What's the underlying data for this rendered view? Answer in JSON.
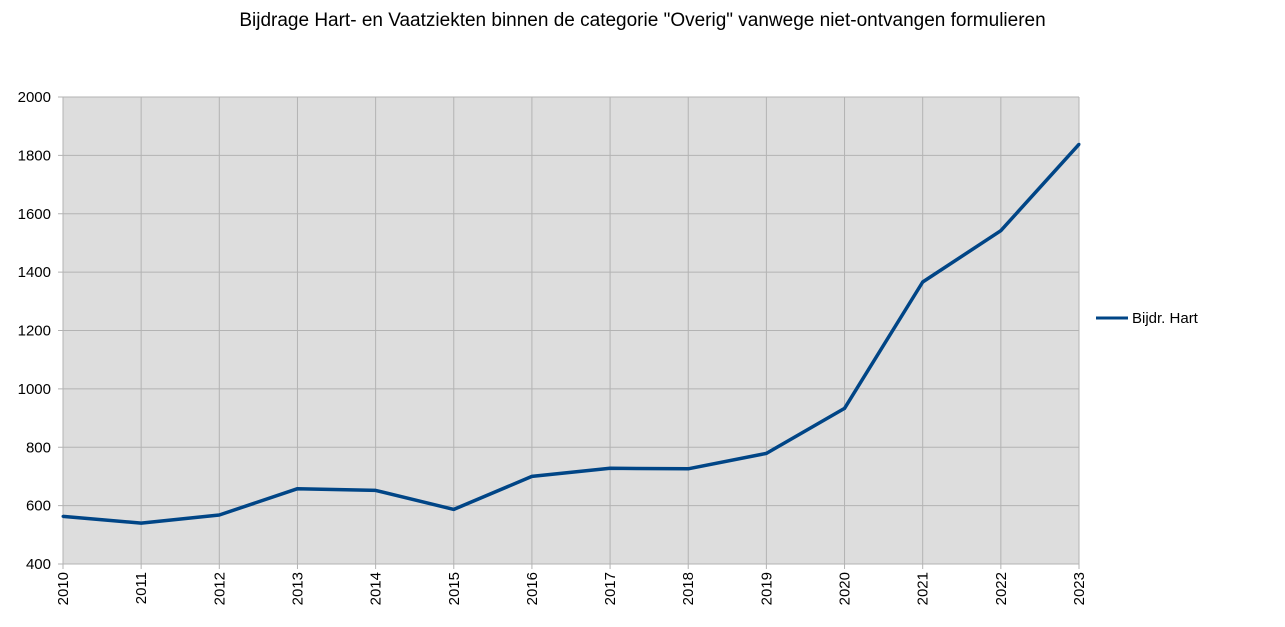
{
  "chart_data": {
    "type": "line",
    "title": "Bijdrage Hart- en Vaatziekten binnen de categorie \"Overig\" vanwege niet-ontvangen formulieren",
    "xlabel": "",
    "ylabel": "",
    "categories": [
      "2010",
      "2011",
      "2012",
      "2013",
      "2014",
      "2015",
      "2016",
      "2017",
      "2018",
      "2019",
      "2020",
      "2021",
      "2022",
      "2023"
    ],
    "series": [
      {
        "name": "Bijdr. Hart",
        "color": "#004586",
        "values": [
          563,
          540,
          568,
          658,
          652,
          587,
          700,
          728,
          726,
          779,
          933,
          1366,
          1542,
          1838
        ]
      }
    ],
    "ylim": [
      400,
      2000
    ],
    "yticks": [
      400,
      600,
      800,
      1000,
      1200,
      1400,
      1600,
      1800,
      2000
    ],
    "grid": true,
    "legend_position": "right",
    "plot_background": "#dddddd",
    "grid_color": "#b3b3b3"
  }
}
